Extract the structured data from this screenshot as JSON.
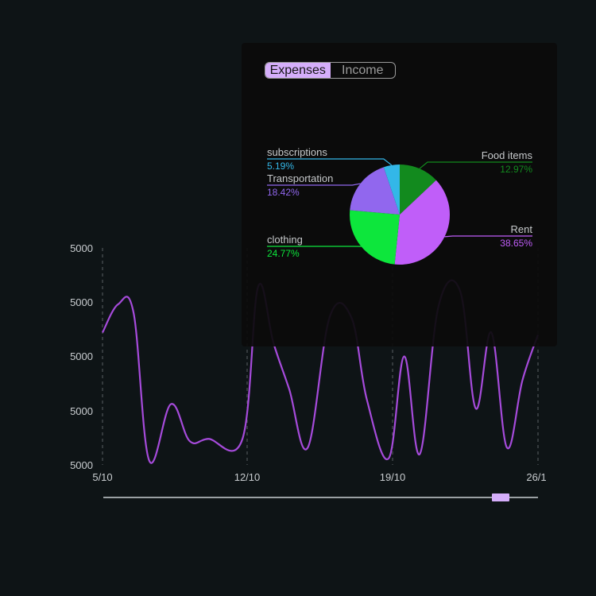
{
  "colors": {
    "background": "#0e1416",
    "line": "#a64bdb",
    "grid": "#5b6164",
    "accent": "#d5aefa"
  },
  "toggle": {
    "expenses_label": "Expenses",
    "income_label": "Income",
    "selected": "Expenses"
  },
  "chart_data": [
    {
      "type": "line",
      "x_ticks": [
        "5/10",
        "12/10",
        "19/10",
        "26/1"
      ],
      "y_ticks": [
        "5000",
        "5000",
        "5000",
        "5000",
        "5000"
      ],
      "grid": "vertical dashed at x ticks",
      "series": [
        {
          "color": "#a64bdb",
          "points": [
            [
              0,
              0.61
            ],
            [
              0.5,
              0.74
            ],
            [
              1.0,
              0.7
            ],
            [
              1.5,
              0.02
            ],
            [
              2.2,
              0.28
            ],
            [
              2.8,
              0.11
            ],
            [
              3.4,
              0.12
            ],
            [
              4.5,
              0.12
            ],
            [
              5.0,
              0.82
            ],
            [
              5.5,
              0.56
            ],
            [
              6.0,
              0.35
            ],
            [
              6.6,
              0.08
            ],
            [
              7.3,
              0.68
            ],
            [
              8.0,
              0.68
            ],
            [
              8.5,
              0.3
            ],
            [
              9.2,
              0.03
            ],
            [
              9.7,
              0.5
            ],
            [
              10.2,
              0.05
            ],
            [
              10.8,
              0.73
            ],
            [
              11.5,
              0.8
            ],
            [
              12.0,
              0.26
            ],
            [
              12.5,
              0.61
            ],
            [
              13.0,
              0.08
            ],
            [
              13.5,
              0.39
            ],
            [
              14.0,
              0.6
            ]
          ]
        }
      ]
    },
    {
      "type": "pie",
      "slices": [
        {
          "label": "Food items",
          "value": 12.97,
          "percent": "12.97%",
          "color": "#128a1e"
        },
        {
          "label": "Rent",
          "value": 38.65,
          "percent": "38.65%",
          "color": "#c05ef9"
        },
        {
          "label": "clothing",
          "value": 24.77,
          "percent": "24.77%",
          "color": "#0de63c"
        },
        {
          "label": "Transportation",
          "value": 18.42,
          "percent": "18.42%",
          "color": "#9167ee"
        },
        {
          "label": "subscriptions",
          "value": 5.19,
          "percent": "5.19%",
          "color": "#33b7e8"
        }
      ]
    }
  ]
}
